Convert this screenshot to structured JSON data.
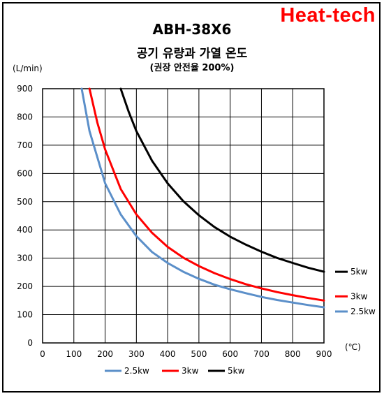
{
  "brand": {
    "text": "Heat-tech",
    "color": "#ff0000"
  },
  "header": {
    "title": "ABH-38X6",
    "subtitle": "공기 유량과 가열 온도",
    "note": "(권장 안전율 200%)"
  },
  "chart_data": {
    "type": "line",
    "ylabel": "(L/min)",
    "xlabel": "(℃)",
    "xlim": [
      0,
      900
    ],
    "ylim": [
      0,
      900
    ],
    "xticks": [
      "0",
      "100",
      "200",
      "300",
      "400",
      "500",
      "600",
      "700",
      "800",
      "900"
    ],
    "yticks": [
      "0",
      "100",
      "200",
      "300",
      "400",
      "500",
      "600",
      "700",
      "800",
      "900"
    ],
    "grid": true,
    "legend_position": "bottom",
    "series": [
      {
        "name": "2.5kw",
        "color": "#5b8fc9",
        "x": [
          125,
          150,
          200,
          250,
          300,
          350,
          400,
          450,
          500,
          550,
          600,
          650,
          700,
          750,
          800,
          850,
          900
        ],
        "y": [
          900,
          750,
          565,
          455,
          378,
          322,
          283,
          252,
          227,
          206,
          190,
          176,
          163,
          152,
          143,
          134,
          126
        ]
      },
      {
        "name": "3kw",
        "color": "#ff0000",
        "x": [
          150,
          175,
          200,
          250,
          300,
          350,
          400,
          450,
          500,
          550,
          600,
          650,
          700,
          750,
          800,
          850,
          900
        ],
        "y": [
          900,
          780,
          685,
          545,
          455,
          390,
          340,
          302,
          272,
          247,
          226,
          208,
          193,
          180,
          169,
          159,
          150
        ]
      },
      {
        "name": "5kw",
        "color": "#000000",
        "x": [
          250,
          275,
          300,
          350,
          400,
          450,
          500,
          550,
          600,
          650,
          700,
          750,
          800,
          850,
          900
        ],
        "y": [
          900,
          820,
          750,
          645,
          565,
          502,
          452,
          410,
          376,
          348,
          323,
          301,
          283,
          266,
          252
        ]
      }
    ]
  }
}
